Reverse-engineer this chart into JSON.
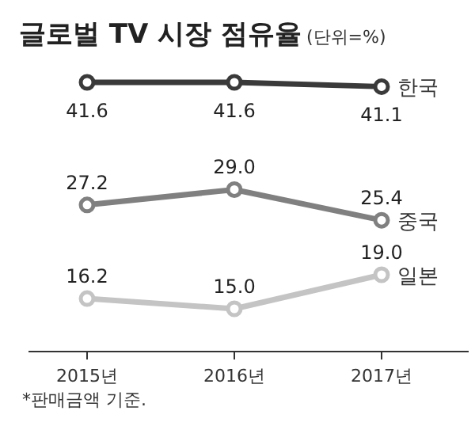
{
  "chart_data": {
    "type": "line",
    "title": "글로벌 TV 시장 점유율",
    "subtitle": "(단위=%)",
    "categories": [
      "2015년",
      "2016년",
      "2017년"
    ],
    "series": [
      {
        "name": "한국",
        "color": "#3a3a3a",
        "values": [
          41.6,
          41.6,
          41.1
        ],
        "value_labels": [
          "41.6",
          "41.6",
          "41.1"
        ]
      },
      {
        "name": "중국",
        "color": "#808080",
        "values": [
          27.2,
          29.0,
          25.4
        ],
        "value_labels": [
          "27.2",
          "29.0",
          "25.4"
        ]
      },
      {
        "name": "일본",
        "color": "#c4c4c4",
        "values": [
          16.2,
          15.0,
          19.0
        ],
        "value_labels": [
          "16.2",
          "15.0",
          "19.0"
        ]
      }
    ],
    "marker": "circle",
    "line_style": "solid",
    "annotations": [
      "*판매금액 기준."
    ]
  }
}
